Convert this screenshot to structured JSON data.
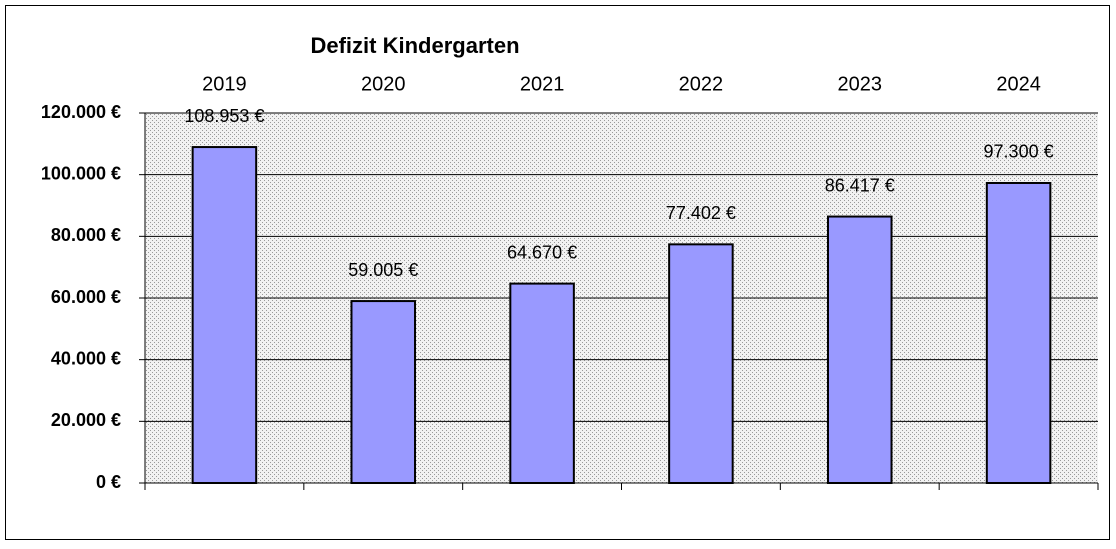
{
  "chart_data": {
    "type": "bar",
    "title": "Defizit Kindergarten",
    "categories": [
      "2019",
      "2020",
      "2021",
      "2022",
      "2023",
      "2024"
    ],
    "values": [
      108953,
      59005,
      64670,
      77402,
      86417,
      97300
    ],
    "value_labels": [
      "108.953 €",
      "59.005 €",
      "64.670 €",
      "77.402 €",
      "86.417 €",
      "97.300 €"
    ],
    "color": "#9999ff",
    "ylim": [
      0,
      120000
    ],
    "yticks": [
      {
        "value": 0,
        "label": "0 €"
      },
      {
        "value": 20000,
        "label": "20.000 €"
      },
      {
        "value": 40000,
        "label": "40.000 €"
      },
      {
        "value": 60000,
        "label": "60.000 €"
      },
      {
        "value": 80000,
        "label": "80.000 €"
      },
      {
        "value": 100000,
        "label": "100.000 €"
      },
      {
        "value": 120000,
        "label": "120.000 €"
      }
    ],
    "grid": true
  }
}
